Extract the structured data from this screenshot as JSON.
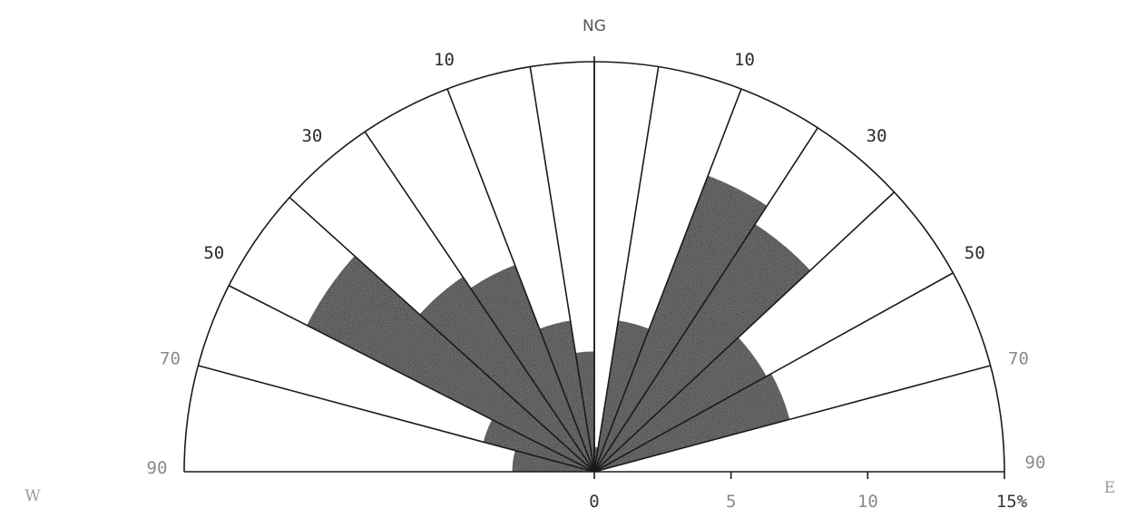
{
  "chart_data": {
    "type": "rose",
    "title": "",
    "axis_max_percent": 15,
    "north_label": "NG",
    "west_label": "W",
    "east_label": "E",
    "scale_ticks": [
      "0",
      "5",
      "10",
      "15%"
    ],
    "scale_tick_values": [
      0,
      5,
      10,
      15
    ],
    "angle_labels_left": [
      {
        "label": "10",
        "angle": -20
      },
      {
        "label": "30",
        "angle": -40
      },
      {
        "label": "50",
        "angle": -60
      },
      {
        "label": "70",
        "angle": -75
      },
      {
        "label": "90",
        "angle": -90
      }
    ],
    "angle_labels_right": [
      {
        "label": "10",
        "angle": 20
      },
      {
        "label": "30",
        "angle": 40
      },
      {
        "label": "50",
        "angle": 60
      },
      {
        "label": "70",
        "angle": 75
      },
      {
        "label": "90",
        "angle": 90
      }
    ],
    "sector_edges": [
      -90,
      -75,
      -63,
      -48,
      -34,
      -21,
      -9,
      0,
      9,
      21,
      33,
      47,
      61,
      75,
      90
    ],
    "sector_values": [
      3.0,
      4.2,
      11.8,
      8.6,
      8.1,
      5.6,
      4.4,
      0.9,
      5.6,
      11.6,
      10.8,
      7.2,
      7.4,
      0.0
    ]
  }
}
